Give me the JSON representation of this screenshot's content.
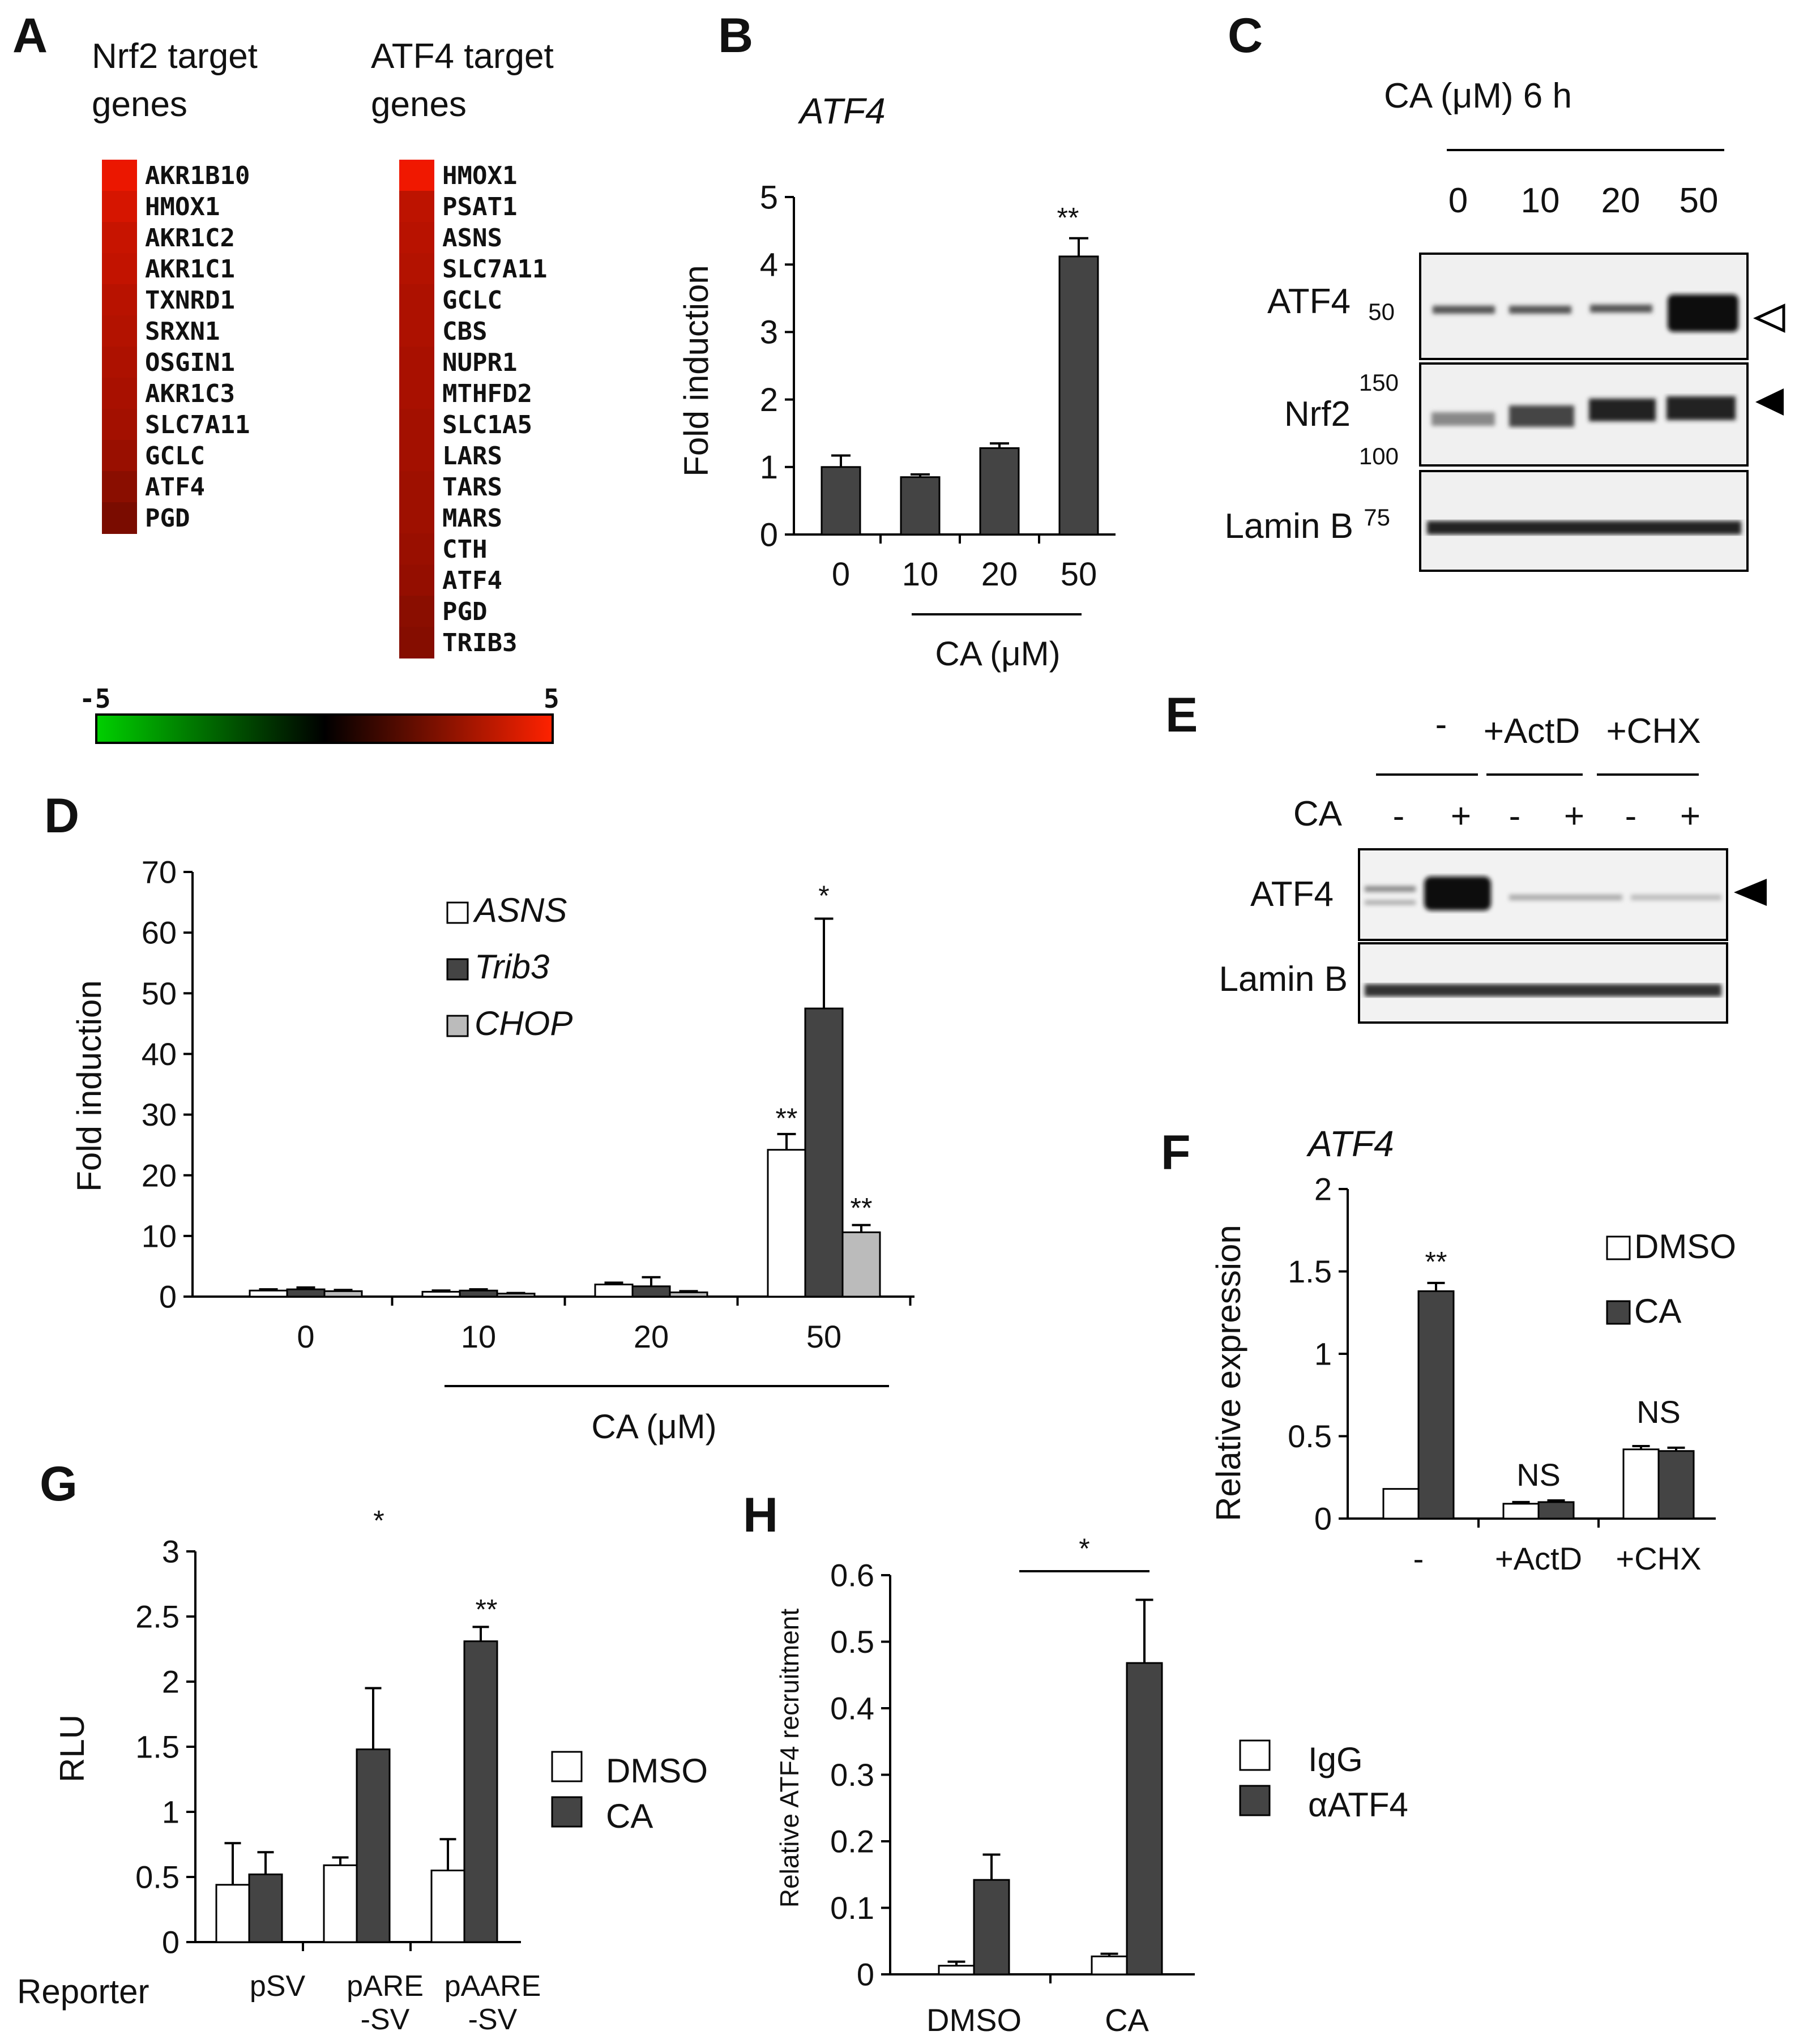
{
  "panel_letters": [
    "A",
    "B",
    "C",
    "D",
    "E",
    "F",
    "G",
    "H"
  ],
  "colors": {
    "dark": "#444444",
    "light": "#bbbbbb",
    "open": "#ffffff"
  },
  "panelA": {
    "nrf2_title": [
      "Nrf2 target",
      "genes"
    ],
    "atf4_title": [
      "ATF4 target",
      "genes"
    ],
    "nrf2_genes": [
      "AKR1B10",
      "HMOX1",
      "AKR1C2",
      "AKR1C1",
      "TXNRD1",
      "SRXN1",
      "OSGIN1",
      "AKR1C3",
      "SLC7A11",
      "GCLC",
      "ATF4",
      "PGD"
    ],
    "nrf2_values": [
      4.6,
      4.2,
      3.9,
      3.8,
      3.6,
      3.5,
      3.4,
      3.3,
      3.2,
      3.0,
      2.7,
      2.4
    ],
    "atf4_genes": [
      "HMOX1",
      "PSAT1",
      "ASNS",
      "SLC7A11",
      "GCLC",
      "CBS",
      "NUPR1",
      "MTHFD2",
      "SLC1A5",
      "LARS",
      "TARS",
      "MARS",
      "CTH",
      "ATF4",
      "PGD",
      "TRIB3"
    ],
    "atf4_values": [
      4.7,
      3.7,
      3.6,
      3.5,
      3.4,
      3.4,
      3.3,
      3.3,
      3.2,
      3.2,
      3.1,
      3.1,
      3.0,
      2.9,
      2.7,
      2.6
    ],
    "scale_min_label": "-5",
    "scale_max_label": "5"
  },
  "chart_data": [
    {
      "id": "B",
      "type": "bar",
      "title": "ATF4",
      "categories": [
        "0",
        "10",
        "20",
        "50"
      ],
      "series": [
        {
          "values": [
            1.0,
            0.85,
            1.28,
            4.12
          ],
          "errors": [
            0.17,
            0.04,
            0.07,
            0.27
          ]
        }
      ],
      "ylabel": "Fold induction",
      "xlabel": "CA (μM)",
      "ylim": [
        0,
        5
      ],
      "yticks": [
        "0",
        "1",
        "2",
        "3",
        "4",
        "5"
      ],
      "annotations": [
        "**"
      ]
    },
    {
      "id": "D",
      "type": "bar",
      "categories": [
        "0",
        "10",
        "20",
        "50"
      ],
      "series": [
        {
          "name": "ASNS",
          "values": [
            1.0,
            0.8,
            2.0,
            24.2
          ],
          "errors": [
            0.2,
            0.2,
            0.3,
            2.6
          ]
        },
        {
          "name": "Trib3",
          "values": [
            1.2,
            1.0,
            1.7,
            47.5
          ],
          "errors": [
            0.3,
            0.2,
            1.5,
            14.8
          ]
        },
        {
          "name": "CHOP",
          "values": [
            0.9,
            0.5,
            0.7,
            10.6
          ],
          "errors": [
            0.2,
            0.1,
            0.2,
            1.2
          ]
        }
      ],
      "ylabel": "Fold induction",
      "xlabel": "CA (μM)",
      "ylim": [
        0,
        70
      ],
      "yticks": [
        "0",
        "10",
        "20",
        "30",
        "40",
        "50",
        "60",
        "70"
      ],
      "annotations": [
        "**",
        "*",
        "**"
      ]
    },
    {
      "id": "F",
      "type": "bar",
      "title": "ATF4",
      "categories": [
        "-",
        "+ActD",
        "+CHX"
      ],
      "series": [
        {
          "name": "DMSO",
          "values": [
            0.18,
            0.09,
            0.42
          ],
          "errors": [
            0.0,
            0.01,
            0.02
          ]
        },
        {
          "name": "CA",
          "values": [
            1.38,
            0.1,
            0.41
          ],
          "errors": [
            0.05,
            0.01,
            0.02
          ]
        }
      ],
      "ylabel": "Relative expression",
      "ylim": [
        0,
        2
      ],
      "yticks": [
        "0",
        "0.5",
        "1",
        "1.5",
        "2"
      ],
      "annotations": [
        "**",
        "NS",
        "NS"
      ]
    },
    {
      "id": "G",
      "type": "bar",
      "categories": [
        "pSV",
        "pARE\n-SV",
        "pAARE\n-SV"
      ],
      "series": [
        {
          "name": "DMSO",
          "values": [
            0.44,
            0.59,
            0.55
          ],
          "errors": [
            0.32,
            0.06,
            0.24
          ]
        },
        {
          "name": "CA",
          "values": [
            0.52,
            1.48,
            2.31
          ],
          "errors": [
            0.17,
            0.47,
            0.11
          ]
        }
      ],
      "ylabel": "RLU",
      "xlabel": "Reporter",
      "ylim": [
        0,
        3
      ],
      "yticks": [
        "0",
        "0.5",
        "1",
        "1.5",
        "2",
        "2.5",
        "3"
      ],
      "annotations": [
        "*",
        "**"
      ]
    },
    {
      "id": "H",
      "type": "bar",
      "categories": [
        "DMSO",
        "CA"
      ],
      "series": [
        {
          "name": "IgG",
          "values": [
            0.013,
            0.027
          ],
          "errors": [
            0.006,
            0.004
          ]
        },
        {
          "name": "αATF4",
          "values": [
            0.142,
            0.468
          ],
          "errors": [
            0.038,
            0.095
          ]
        }
      ],
      "ylabel": "Relative ATF4 recruitment",
      "ylim": [
        0,
        0.6
      ],
      "yticks": [
        "0",
        "0.1",
        "0.2",
        "0.3",
        "0.4",
        "0.5",
        "0.6"
      ],
      "annotations": [
        "*"
      ]
    }
  ],
  "panelC": {
    "header": "CA (μM) 6 h",
    "lanes": [
      "0",
      "10",
      "20",
      "50"
    ],
    "rows": [
      "ATF4",
      "Nrf2",
      "Lamin B"
    ],
    "markers": [
      "50",
      "150",
      "100",
      "75"
    ]
  },
  "panelE": {
    "groups": [
      "-",
      "+ActD",
      "+CHX"
    ],
    "ca_label": "CA",
    "ca_states": [
      "-",
      "+",
      "-",
      "+",
      "-",
      "+"
    ],
    "rows": [
      "ATF4",
      "Lamin B"
    ]
  }
}
